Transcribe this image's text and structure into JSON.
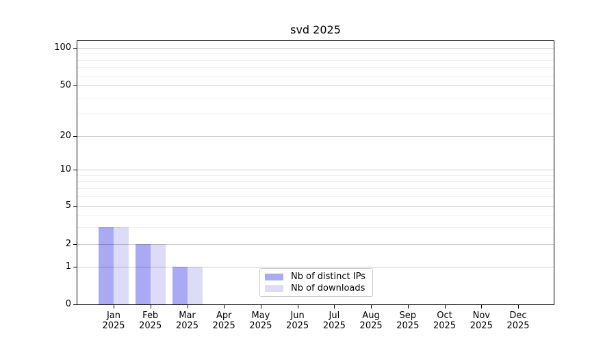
{
  "chart_data": {
    "type": "bar",
    "title": "svd 2025",
    "categories": [
      "Jan",
      "Feb",
      "Mar",
      "Apr",
      "May",
      "Jun",
      "Jul",
      "Aug",
      "Sep",
      "Oct",
      "Nov",
      "Dec"
    ],
    "year_label": "2025",
    "series": [
      {
        "name": "Nb of distinct IPs",
        "color": "#a9a9f4",
        "values": [
          3,
          2,
          1,
          0,
          0,
          0,
          0,
          0,
          0,
          0,
          0,
          0
        ]
      },
      {
        "name": "Nb of downloads",
        "color": "#dcdcf8",
        "values": [
          3,
          2,
          1,
          0,
          0,
          0,
          0,
          0,
          0,
          0,
          0,
          0
        ]
      }
    ],
    "yscale": "symlog",
    "y_ticks": [
      0,
      1,
      2,
      5,
      10,
      20,
      50,
      100
    ],
    "y_minor_ticks": [
      3,
      4,
      6,
      7,
      8,
      9,
      30,
      40,
      60,
      70,
      80,
      90
    ],
    "ylim": [
      0,
      120
    ],
    "xlabel": "",
    "ylabel": "",
    "grid": "both",
    "legend_position": "lower center",
    "axis_color": "#000000",
    "major_grid_color": "#cccccc",
    "minor_grid_color": "#efefef",
    "background_color": "#ffffff"
  }
}
